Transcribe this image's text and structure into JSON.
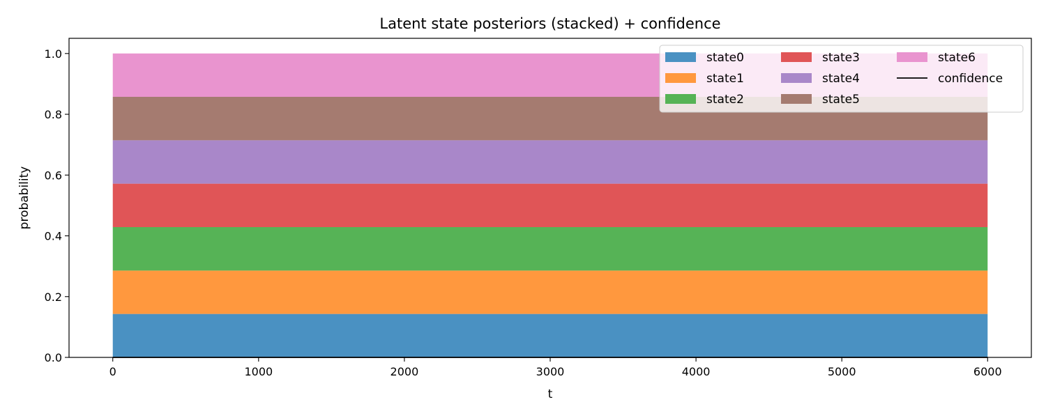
{
  "chart_data": {
    "type": "area",
    "stacked": true,
    "title": "Latent state posteriors (stacked) + confidence",
    "xlabel": "t",
    "ylabel": "probability",
    "xlim": [
      -300,
      6300
    ],
    "ylim": [
      0.0,
      1.05
    ],
    "x": [
      0,
      6000
    ],
    "xticks": [
      0,
      1000,
      2000,
      3000,
      4000,
      5000,
      6000
    ],
    "xtick_labels": [
      "0",
      "1000",
      "2000",
      "3000",
      "4000",
      "5000",
      "6000"
    ],
    "yticks": [
      0.0,
      0.2,
      0.4,
      0.6,
      0.8,
      1.0
    ],
    "ytick_labels": [
      "0.0",
      "0.2",
      "0.4",
      "0.6",
      "0.8",
      "1.0"
    ],
    "grid": false,
    "legend": {
      "placement": "top-right",
      "columns": 3
    },
    "series": [
      {
        "name": "state0",
        "values": [
          0.1429,
          0.1429
        ],
        "color": "#4a91c2"
      },
      {
        "name": "state1",
        "values": [
          0.1429,
          0.1429
        ],
        "color": "#ff983e"
      },
      {
        "name": "state2",
        "values": [
          0.1429,
          0.1429
        ],
        "color": "#56b356"
      },
      {
        "name": "state3",
        "values": [
          0.1429,
          0.1429
        ],
        "color": "#e05557"
      },
      {
        "name": "state4",
        "values": [
          0.1429,
          0.1429
        ],
        "color": "#a987c9"
      },
      {
        "name": "state5",
        "values": [
          0.1429,
          0.1429
        ],
        "color": "#a57b70"
      },
      {
        "name": "state6",
        "values": [
          0.1426,
          0.1426
        ],
        "color": "#e994cf"
      }
    ],
    "line": {
      "name": "confidence",
      "values": [
        0.0,
        0.0
      ],
      "color": "#000000"
    }
  }
}
